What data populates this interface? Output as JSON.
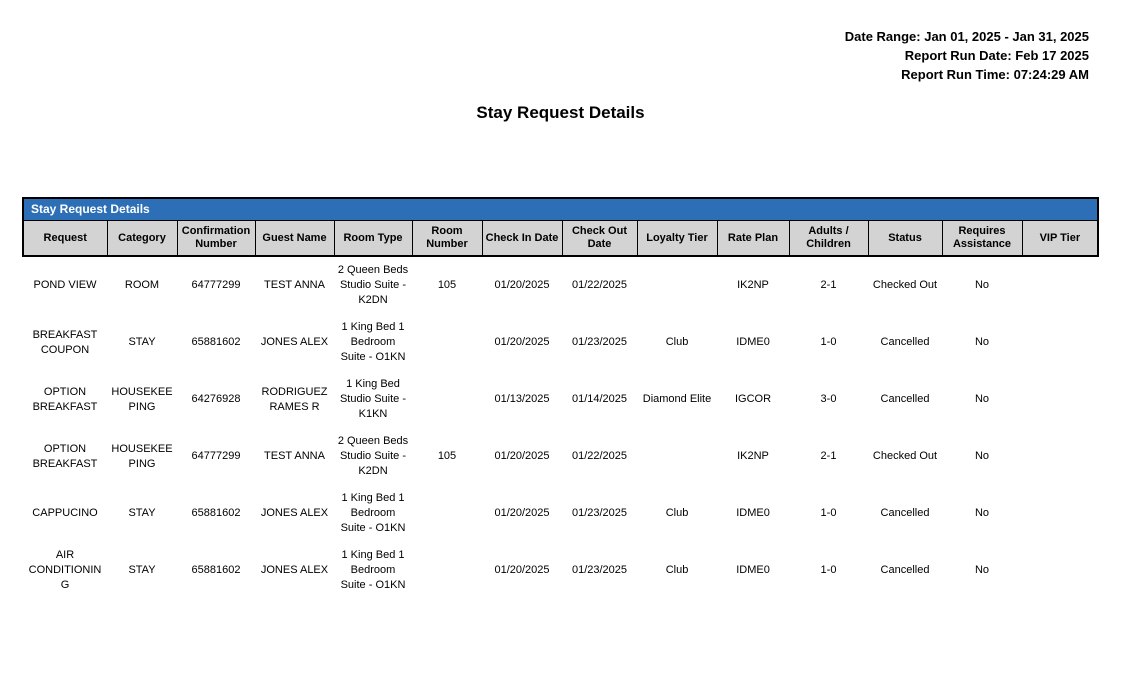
{
  "report": {
    "meta_lines": [
      "Date Range: Jan 01, 2025 - Jan 31, 2025",
      "Report Run Date: Feb 17 2025",
      "Report Run Time: 07:24:29 AM"
    ],
    "page_title": "Stay Request Details"
  },
  "table": {
    "title": "Stay Request Details",
    "columns": [
      "Request",
      "Category",
      "Confirmation Number",
      "Guest Name",
      "Room Type",
      "Room Number",
      "Check In Date",
      "Check Out Date",
      "Loyalty Tier",
      "Rate Plan",
      "Adults / Children",
      "Status",
      "Requires Assistance",
      "VIP Tier"
    ],
    "rows": [
      [
        "POND VIEW",
        "ROOM",
        "64777299",
        "TEST ANNA",
        "2 Queen Beds Studio Suite - K2DN",
        "105",
        "01/20/2025",
        "01/22/2025",
        "",
        "IK2NP",
        "2-1",
        "Checked Out",
        "No",
        ""
      ],
      [
        "BREAKFAST COUPON",
        "STAY",
        "65881602",
        "JONES ALEX",
        "1 King Bed 1 Bedroom Suite - O1KN",
        "",
        "01/20/2025",
        "01/23/2025",
        "Club",
        "IDME0",
        "1-0",
        "Cancelled",
        "No",
        ""
      ],
      [
        "OPTION BREAKFAST",
        "HOUSEKEEPING",
        "64276928",
        "RODRIGUEZ RAMES R",
        "1 King Bed Studio Suite - K1KN",
        "",
        "01/13/2025",
        "01/14/2025",
        "Diamond Elite",
        "IGCOR",
        "3-0",
        "Cancelled",
        "No",
        ""
      ],
      [
        "OPTION BREAKFAST",
        "HOUSEKEEPING",
        "64777299",
        "TEST ANNA",
        "2 Queen Beds Studio Suite - K2DN",
        "105",
        "01/20/2025",
        "01/22/2025",
        "",
        "IK2NP",
        "2-1",
        "Checked Out",
        "No",
        ""
      ],
      [
        "CAPPUCINO",
        "STAY",
        "65881602",
        "JONES ALEX",
        "1 King Bed 1 Bedroom Suite - O1KN",
        "",
        "01/20/2025",
        "01/23/2025",
        "Club",
        "IDME0",
        "1-0",
        "Cancelled",
        "No",
        ""
      ],
      [
        "AIR CONDITIONING",
        "STAY",
        "65881602",
        "JONES ALEX",
        "1 King Bed 1 Bedroom Suite - O1KN",
        "",
        "01/20/2025",
        "01/23/2025",
        "Club",
        "IDME0",
        "1-0",
        "Cancelled",
        "No",
        ""
      ]
    ]
  },
  "colors": {
    "table_title_bar": "#2C6FB7",
    "header_row_bg": "#D3D3D3",
    "border": "#000000"
  }
}
